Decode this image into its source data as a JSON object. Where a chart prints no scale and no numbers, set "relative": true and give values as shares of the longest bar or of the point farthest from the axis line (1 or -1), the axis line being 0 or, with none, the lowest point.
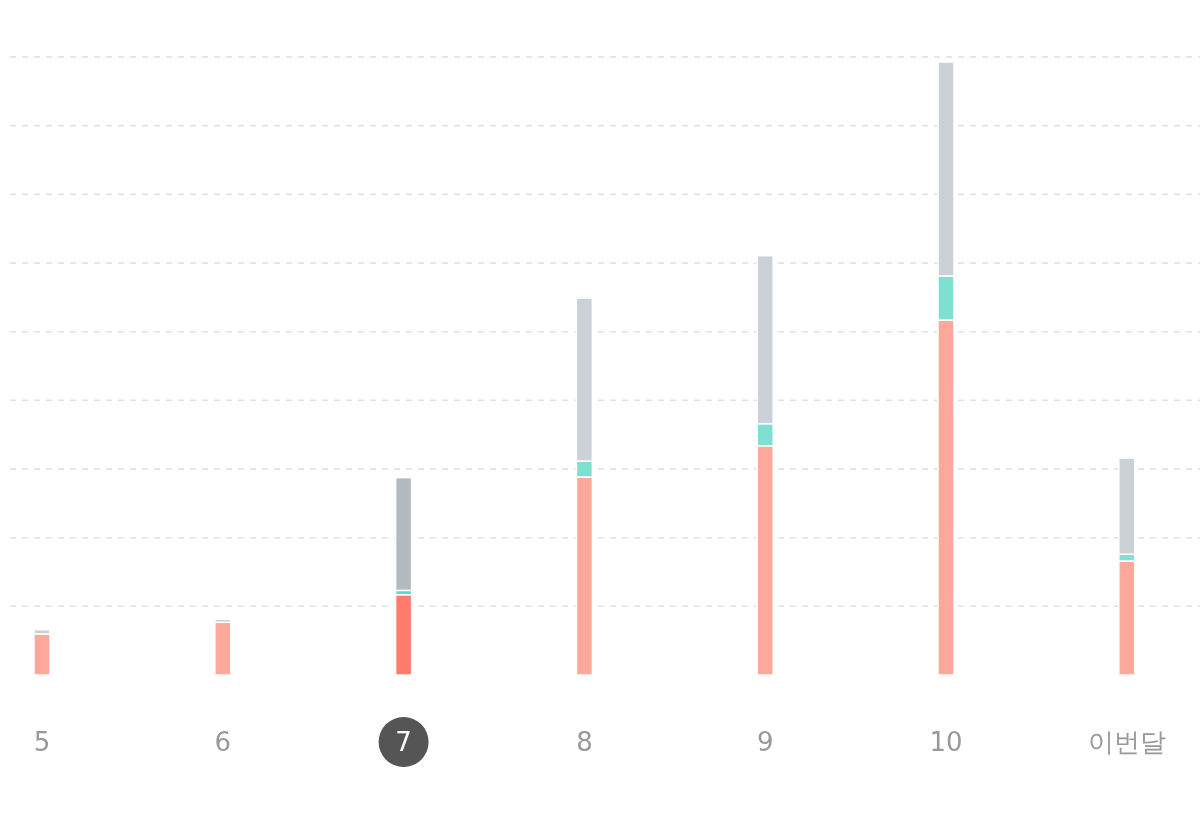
{
  "chart_data": {
    "type": "bar",
    "stacked": true,
    "relative": true,
    "grid": "y",
    "categories": [
      "5",
      "6",
      "7",
      "8",
      "9",
      "10",
      "이번달"
    ],
    "series": [
      {
        "color": "#fda89a",
        "colors": [
          "#fda89a",
          "#fda89a",
          "#ff7b6b",
          "#fda89a",
          "#fda89a",
          "#fda89a",
          "#fda89a"
        ],
        "values": [
          0.067,
          0.086,
          0.131,
          0.323,
          0.374,
          0.579,
          0.186
        ]
      },
      {
        "color": "#7fe0d2",
        "colors": [
          "#7fe0d2",
          "#7fe0d2",
          "#5fd6c6",
          "#7fe0d2",
          "#7fe0d2",
          "#7fe0d2",
          "#7fe0d2"
        ],
        "values": [
          0,
          0,
          0.007,
          0.026,
          0.036,
          0.072,
          0.011
        ]
      },
      {
        "color": "#ccd1d7",
        "colors": [
          "#ccd1d7",
          "#ccd1d7",
          "#b4bac1",
          "#ccd1d7",
          "#ccd1d7",
          "#ccd1d7",
          "#ccd1d7"
        ],
        "values": [
          0.007,
          0.005,
          0.184,
          0.266,
          0.274,
          0.349,
          0.157
        ]
      }
    ]
  }
}
